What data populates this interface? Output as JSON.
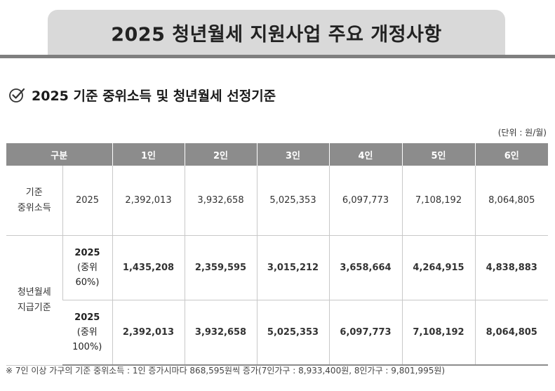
{
  "banner": {
    "title": "2025 청년월세 지원사업 주요 개정사항"
  },
  "section": {
    "title": "2025 기준 중위소득 및 청년월세 선정기준",
    "icon": "check-circle-icon"
  },
  "table": {
    "unit": "(단위 : 원/월)",
    "header": {
      "category": "구분",
      "columns": [
        "1인",
        "2인",
        "3인",
        "4인",
        "5인",
        "6인"
      ]
    },
    "base_income": {
      "label_line1": "기준",
      "label_line2": "중위소득",
      "year": "2025",
      "values": [
        "2,392,013",
        "3,932,658",
        "5,025,353",
        "6,097,773",
        "7,108,192",
        "8,064,805"
      ]
    },
    "youth_rent": {
      "label_line1": "청년월세",
      "label_line2": "지급기준",
      "rows": [
        {
          "year": "2025",
          "note1": "(중위",
          "note2": "60%)",
          "values": [
            "1,435,208",
            "2,359,595",
            "3,015,212",
            "3,658,664",
            "4,264,915",
            "4,838,883"
          ]
        },
        {
          "year": "2025",
          "note1": "(중위",
          "note2": "100%)",
          "values": [
            "2,392,013",
            "3,932,658",
            "5,025,353",
            "6,097,773",
            "7,108,192",
            "8,064,805"
          ]
        }
      ]
    }
  },
  "footnote": "※ 7인 이상 가구의 기준 중위소득 : 1인 증가시마다 868,595원씩 증가(7인가구 : 8,933,400원, 8인가구 : 9,801,995원)"
}
